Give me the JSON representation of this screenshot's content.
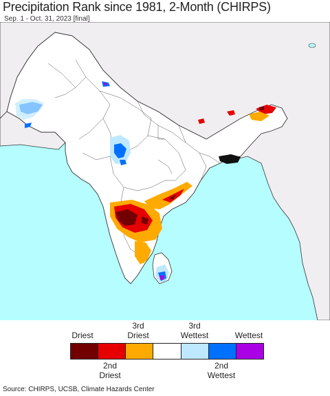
{
  "title": "Precipitation Rank since 1981, 2-Month (CHIRPS)",
  "subtitle": "Sep. 1 - Oct. 31, 2023 [final]",
  "map": {
    "colors": {
      "ocean": "#b5fdff",
      "land": "#ffffff",
      "outside_land": "#f1eef2",
      "border": "#333333"
    }
  },
  "legend": {
    "top_labels": [
      {
        "line1": "",
        "line2": "Driest"
      },
      {
        "line1": "3rd",
        "line2": "Driest"
      },
      {
        "line1": "3rd",
        "line2": "Wettest"
      },
      {
        "line1": "",
        "line2": "Wettest"
      }
    ],
    "bottom_labels": [
      {
        "line1": "2nd",
        "line2": "Driest"
      },
      {
        "line1": "2nd",
        "line2": "Wettest"
      }
    ],
    "colors": [
      "#730000",
      "#e60000",
      "#ffaa00",
      "#ffffff",
      "#bee8ff",
      "#0070ff",
      "#a900e6"
    ]
  },
  "source": "Source: CHIRPS, UCSB, Climate Hazards Center"
}
